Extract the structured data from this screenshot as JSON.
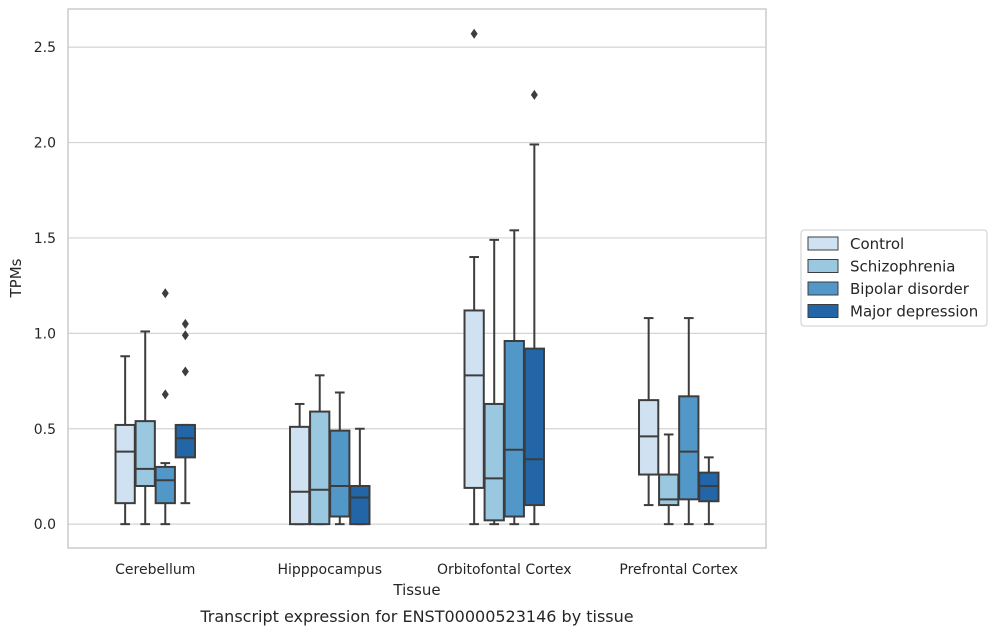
{
  "caption": "Transcript expression for ENST00000523146 by tissue",
  "chart_data": {
    "type": "box",
    "xlabel": "Tissue",
    "ylabel": "TPMs",
    "ylim": [
      -0.125,
      2.7
    ],
    "yticks": [
      0.0,
      0.5,
      1.0,
      1.5,
      2.0,
      2.5
    ],
    "ytick_labels": [
      "0.0",
      "0.5",
      "1.0",
      "1.5",
      "2.0",
      "2.5"
    ],
    "categories": [
      "Cerebellum",
      "Hipppocampus",
      "Orbitofontal Cortex",
      "Prefrontal Cortex"
    ],
    "grid": "horizontal",
    "legend_position": "right",
    "series": [
      {
        "name": "Control",
        "color": "#d0e2f2",
        "boxes": [
          {
            "whisker_low": 0.0,
            "q1": 0.11,
            "median": 0.38,
            "q3": 0.52,
            "whisker_high": 0.88,
            "outliers": []
          },
          {
            "whisker_low": 0.0,
            "q1": 0.0,
            "median": 0.17,
            "q3": 0.51,
            "whisker_high": 0.63,
            "outliers": []
          },
          {
            "whisker_low": 0.0,
            "q1": 0.19,
            "median": 0.78,
            "q3": 1.12,
            "whisker_high": 1.4,
            "outliers": [
              2.57
            ]
          },
          {
            "whisker_low": 0.1,
            "q1": 0.26,
            "median": 0.46,
            "q3": 0.65,
            "whisker_high": 1.08,
            "outliers": []
          }
        ]
      },
      {
        "name": "Schizophrenia",
        "color": "#9ac8e0",
        "boxes": [
          {
            "whisker_low": 0.0,
            "q1": 0.2,
            "median": 0.29,
            "q3": 0.54,
            "whisker_high": 1.01,
            "outliers": []
          },
          {
            "whisker_low": 0.0,
            "q1": 0.0,
            "median": 0.18,
            "q3": 0.59,
            "whisker_high": 0.78,
            "outliers": []
          },
          {
            "whisker_low": 0.0,
            "q1": 0.02,
            "median": 0.24,
            "q3": 0.63,
            "whisker_high": 1.49,
            "outliers": []
          },
          {
            "whisker_low": 0.0,
            "q1": 0.1,
            "median": 0.13,
            "q3": 0.26,
            "whisker_high": 0.47,
            "outliers": []
          }
        ]
      },
      {
        "name": "Bipolar disorder",
        "color": "#5198c8",
        "boxes": [
          {
            "whisker_low": 0.0,
            "q1": 0.11,
            "median": 0.23,
            "q3": 0.3,
            "whisker_high": 0.32,
            "outliers": [
              0.68,
              1.21
            ]
          },
          {
            "whisker_low": 0.0,
            "q1": 0.04,
            "median": 0.2,
            "q3": 0.49,
            "whisker_high": 0.69,
            "outliers": []
          },
          {
            "whisker_low": 0.0,
            "q1": 0.04,
            "median": 0.39,
            "q3": 0.96,
            "whisker_high": 1.54,
            "outliers": []
          },
          {
            "whisker_low": 0.0,
            "q1": 0.13,
            "median": 0.38,
            "q3": 0.67,
            "whisker_high": 1.08,
            "outliers": []
          }
        ]
      },
      {
        "name": "Major depression",
        "color": "#2366a8",
        "boxes": [
          {
            "whisker_low": 0.11,
            "q1": 0.35,
            "median": 0.45,
            "q3": 0.52,
            "whisker_high": 0.52,
            "outliers": [
              0.8,
              0.99,
              1.05
            ]
          },
          {
            "whisker_low": 0.0,
            "q1": 0.0,
            "median": 0.14,
            "q3": 0.2,
            "whisker_high": 0.5,
            "outliers": []
          },
          {
            "whisker_low": 0.0,
            "q1": 0.1,
            "median": 0.34,
            "q3": 0.92,
            "whisker_high": 1.99,
            "outliers": [
              2.25
            ]
          },
          {
            "whisker_low": 0.0,
            "q1": 0.12,
            "median": 0.2,
            "q3": 0.27,
            "whisker_high": 0.35,
            "outliers": []
          }
        ]
      }
    ]
  }
}
